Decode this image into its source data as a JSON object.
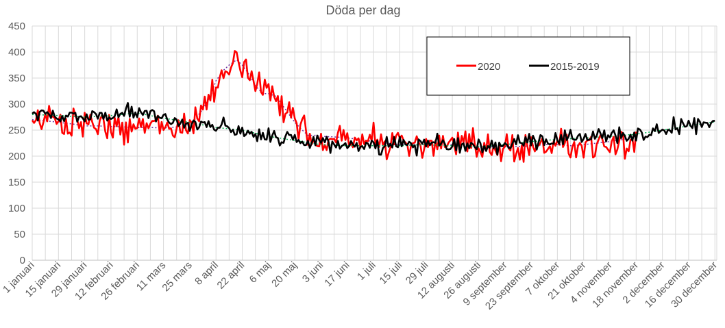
{
  "chart_data": {
    "type": "line",
    "title": "Döda per dag",
    "xlabel": "",
    "ylabel": "",
    "ylim": [
      0,
      450
    ],
    "yticks": [
      0,
      50,
      100,
      150,
      200,
      250,
      300,
      350,
      400,
      450
    ],
    "x_tick_labels": [
      "1 januari",
      "15 januari",
      "29 januari",
      "12 februari",
      "26 februari",
      "11 mars",
      "25 mars",
      "8 april",
      "22 april",
      "6 maj",
      "20 maj",
      "3 juni",
      "17 juni",
      "1 juli",
      "15 juli",
      "29 juli",
      "12 augusti",
      "26 augusti",
      "9 september",
      "23 september",
      "7 oktober",
      "21 oktober",
      "4 november",
      "18 november",
      "2 december",
      "16 december",
      "30 december"
    ],
    "x_tick_days": [
      1,
      15,
      29,
      43,
      57,
      71,
      85,
      99,
      113,
      127,
      141,
      155,
      169,
      183,
      197,
      211,
      225,
      239,
      253,
      267,
      281,
      295,
      309,
      323,
      337,
      351,
      365
    ],
    "grid": true,
    "legend_position": "top-right",
    "colors": {
      "2020": "#ff0000",
      "2015-2019": "#000000",
      "trend_2020": "#7030a0",
      "trend_2015_2019": "#00b050"
    },
    "series": [
      {
        "name": "2020",
        "color": "#ff0000",
        "anchors_day": [
          1,
          8,
          15,
          22,
          29,
          36,
          43,
          50,
          57,
          64,
          71,
          78,
          85,
          88,
          92,
          96,
          99,
          103,
          106,
          110,
          113,
          117,
          120,
          124,
          127,
          131,
          134,
          138,
          141,
          145,
          148,
          152,
          155,
          162,
          169,
          176,
          183,
          190,
          197,
          204,
          211,
          218,
          225,
          232,
          239,
          246,
          253,
          260,
          267,
          274,
          281,
          288,
          295,
          302,
          309,
          316,
          323
        ],
        "anchors_value": [
          270,
          268,
          265,
          262,
          258,
          258,
          257,
          256,
          255,
          255,
          254,
          256,
          262,
          272,
          290,
          315,
          345,
          365,
          375,
          385,
          375,
          355,
          335,
          320,
          320,
          315,
          300,
          280,
          265,
          250,
          240,
          240,
          238,
          237,
          235,
          232,
          228,
          225,
          222,
          222,
          222,
          220,
          222,
          218,
          216,
          218,
          218,
          218,
          220,
          222,
          222,
          220,
          222,
          225,
          228,
          232,
          238
        ]
      },
      {
        "name": "2015-2019",
        "color": "#000000",
        "anchors_day": [
          1,
          15,
          29,
          43,
          57,
          71,
          85,
          99,
          113,
          127,
          141,
          155,
          169,
          183,
          197,
          211,
          225,
          239,
          253,
          267,
          281,
          295,
          309,
          323,
          337,
          351,
          365
        ],
        "anchors_value": [
          280,
          278,
          275,
          278,
          283,
          273,
          265,
          255,
          250,
          238,
          230,
          222,
          220,
          220,
          220,
          222,
          220,
          218,
          222,
          228,
          232,
          235,
          238,
          242,
          250,
          258,
          266
        ]
      }
    ],
    "trendlines": [
      {
        "name": "trend_2020",
        "style": "dotted",
        "color": "#7030a0"
      },
      {
        "name": "trend_2015_2019",
        "style": "dotted",
        "color": "#00b050"
      }
    ]
  },
  "legend": {
    "items": [
      "2020",
      "2015-2019"
    ]
  }
}
